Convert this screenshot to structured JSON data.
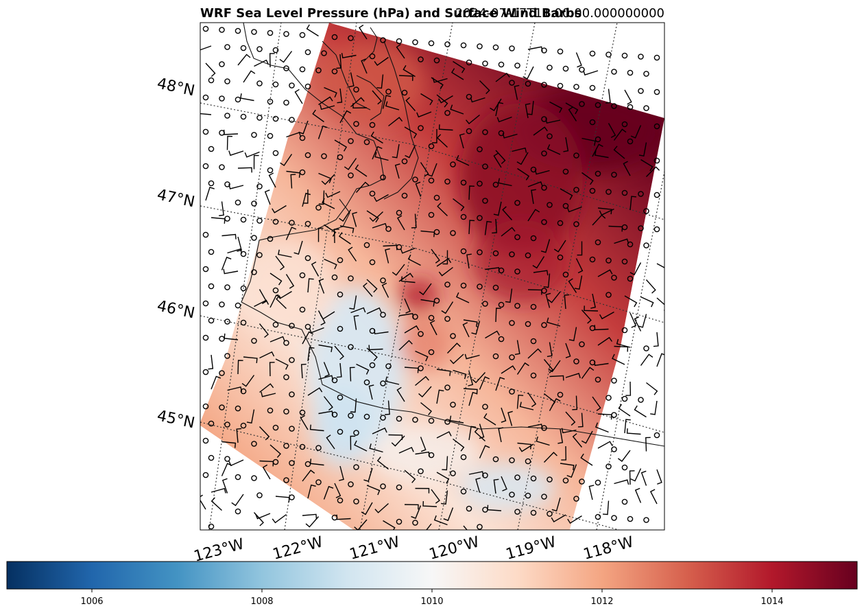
{
  "title": "WRF Sea Level Pressure (hPa) and Surface Wind Barbs",
  "timestamp": "2024-07-17T11:00:00.000000000",
  "map": {
    "lon_labels": [
      "123°W",
      "122°W",
      "121°W",
      "120°W",
      "119°W",
      "118°W"
    ],
    "lat_labels": [
      "48°N",
      "47°N",
      "46°N",
      "45°N"
    ],
    "gridlines": "dotted",
    "coastlines": true,
    "state_borders": true,
    "field": "sea level pressure",
    "overlay": "surface wind barbs"
  },
  "colorbar": {
    "colormap": "RdBu_r",
    "range": [
      1005,
      1015
    ],
    "ticks": [
      1006,
      1008,
      1010,
      1012,
      1014
    ],
    "tick_labels": [
      "1006",
      "1008",
      "1010",
      "1012",
      "1014"
    ]
  },
  "colors": {
    "high": "#67001f",
    "mid": "#f7f7f7",
    "low": "#053061"
  }
}
